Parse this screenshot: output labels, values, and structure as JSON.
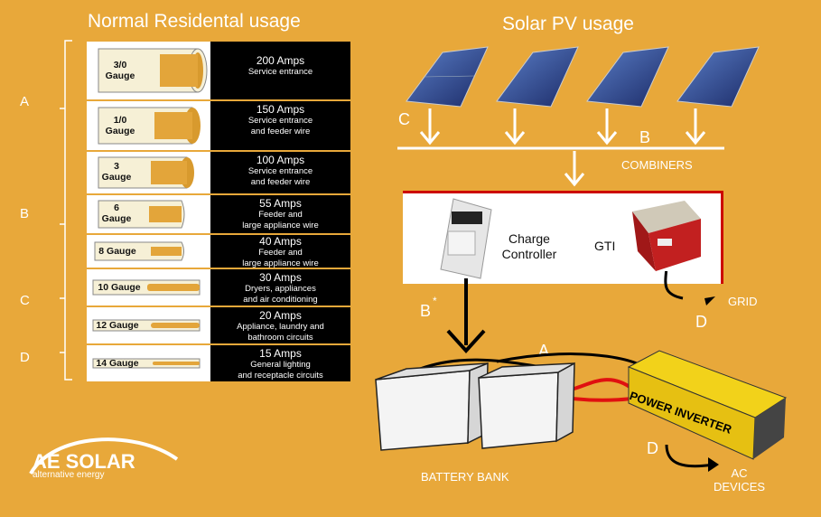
{
  "left_title": "Normal Residental usage",
  "right_title": "Solar PV usage",
  "side_letters": [
    "A",
    "B",
    "C",
    "D"
  ],
  "gauge_rows": [
    {
      "gauge": "3/0\nGauge",
      "amps": "200 Amps",
      "desc": [
        "Service entrance"
      ]
    },
    {
      "gauge": "1/0\nGauge",
      "amps": "150 Amps",
      "desc": [
        "Service entrance",
        "and feeder wire"
      ]
    },
    {
      "gauge": "3\nGauge",
      "amps": "100 Amps",
      "desc": [
        "Service entrance",
        "and feeder wire"
      ]
    },
    {
      "gauge": "6\nGauge",
      "amps": "55 Amps",
      "desc": [
        "Feeder and",
        "large appliance wire"
      ]
    },
    {
      "gauge": "8 Gauge",
      "amps": "40 Amps",
      "desc": [
        "Feeder and",
        "large appliance wire"
      ]
    },
    {
      "gauge": "10 Gauge",
      "amps": "30 Amps",
      "desc": [
        "Dryers, appliances",
        "and air conditioning"
      ]
    },
    {
      "gauge": "12 Gauge",
      "amps": "20 Amps",
      "desc": [
        "Appliance, laundry and",
        "bathroom circuits"
      ]
    },
    {
      "gauge": "14 Gauge",
      "amps": "15 Amps",
      "desc": [
        "General lighting",
        "and receptacle circuits"
      ]
    }
  ],
  "diagram": {
    "letter_c": "C",
    "letter_b": "B",
    "combiners": "COMBINERS",
    "charge_controller": "Charge\nController",
    "gti": "GTI",
    "b_star": "B",
    "grid": "GRID",
    "letter_d_grid": "D",
    "letter_a": "A",
    "battery_bank": "BATTERY BANK",
    "power_inverter": "POWER INVERTER",
    "letter_d_ac": "D",
    "ac_devices": "AC\nDEVICES"
  },
  "logo": {
    "brand": "AE SOLAR",
    "tagline": "alternative energy"
  },
  "colors": {
    "background": "#E8A83A",
    "wire_red": "#E01010",
    "inverter_yellow": "#F2D21A"
  }
}
